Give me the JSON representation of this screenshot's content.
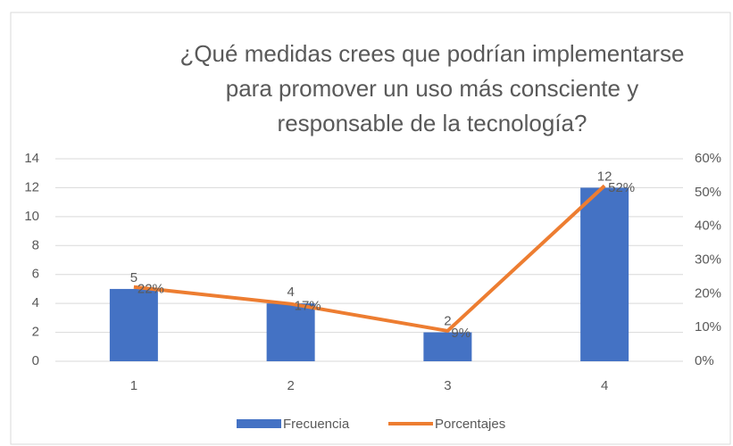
{
  "chart_data": {
    "type": "bar",
    "title": [
      "¿Qué medidas crees que podrían implementarse",
      "para promover un uso más consciente y",
      "responsable de la tecnología?"
    ],
    "categories": [
      "1",
      "2",
      "3",
      "4"
    ],
    "series": [
      {
        "name": "Frecuencia",
        "type": "bar",
        "color": "#4472c4",
        "values": [
          5,
          4,
          2,
          12
        ]
      },
      {
        "name": "Porcentajes",
        "type": "line",
        "axis": "y2",
        "color": "#ed7d31",
        "values": [
          22,
          17,
          9,
          52
        ],
        "value_labels": [
          "22%",
          "17%",
          "9%",
          "52%"
        ]
      }
    ],
    "ylim": [
      0,
      14
    ],
    "yticks": [
      0,
      2,
      4,
      6,
      8,
      10,
      12,
      14
    ],
    "y2lim": [
      0,
      60
    ],
    "y2ticks": [
      {
        "value": 0,
        "label": "0%"
      },
      {
        "value": 10,
        "label": "10%"
      },
      {
        "value": 20,
        "label": "20%"
      },
      {
        "value": 30,
        "label": "30%"
      },
      {
        "value": 40,
        "label": "40%"
      },
      {
        "value": 50,
        "label": "50%"
      },
      {
        "value": 60,
        "label": "60%"
      }
    ],
    "grid": true,
    "legend": "bottom"
  }
}
